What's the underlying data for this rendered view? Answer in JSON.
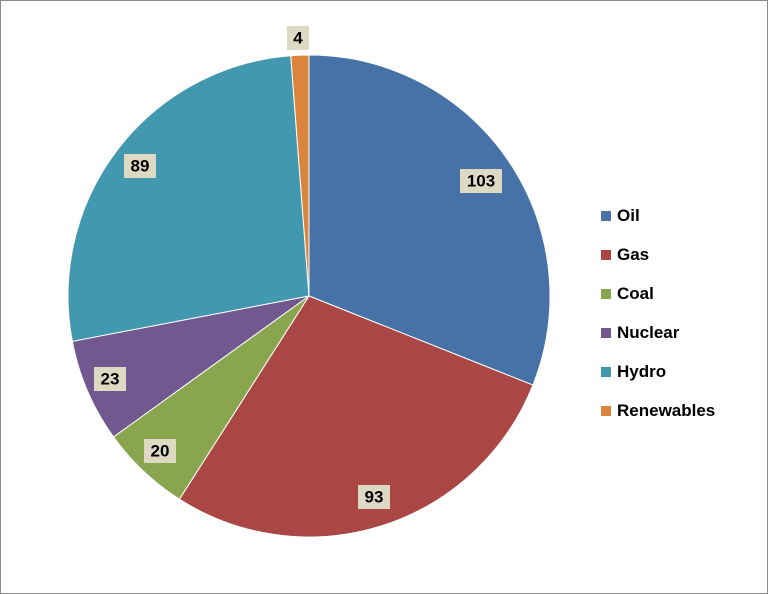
{
  "chart_data": {
    "type": "pie",
    "title": "",
    "legend_position": "right",
    "categories": [
      "Oil",
      "Gas",
      "Coal",
      "Nuclear",
      "Hydro",
      "Renewables"
    ],
    "values": [
      103,
      93,
      20,
      23,
      89,
      4
    ],
    "colors": [
      "#4672a8",
      "#aa4643",
      "#89a54e",
      "#71588f",
      "#4198af",
      "#db843d"
    ],
    "data_labels": [
      "103",
      "93",
      "20",
      "23",
      "89",
      "4"
    ]
  }
}
